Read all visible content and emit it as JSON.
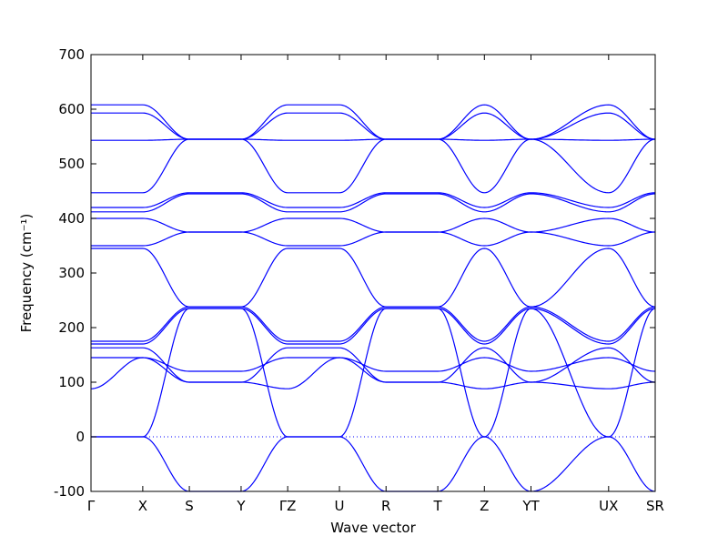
{
  "chart_data": {
    "type": "line",
    "title": "",
    "xlabel": "Wave vector",
    "ylabel": "Frequency (cm⁻¹)",
    "ylim": [
      -100,
      700
    ],
    "y_ticks": [
      -100,
      0,
      100,
      200,
      300,
      400,
      500,
      600,
      700
    ],
    "x_ticks": [
      {
        "label": "Γ",
        "pos": 0
      },
      {
        "label": "X",
        "pos": 0.5
      },
      {
        "label": "S",
        "pos": 0.95
      },
      {
        "label": "Y",
        "pos": 1.45
      },
      {
        "label": "ΓZ",
        "pos": 1.9
      },
      {
        "label": "U",
        "pos": 2.4
      },
      {
        "label": "R",
        "pos": 2.85
      },
      {
        "label": "T",
        "pos": 3.35
      },
      {
        "label": "Z",
        "pos": 3.8
      },
      {
        "label": "YT",
        "pos": 4.25
      },
      {
        "label": "UX",
        "pos": 5.0
      },
      {
        "label": "SR",
        "pos": 5.45
      }
    ],
    "xlim": [
      0,
      5.45
    ],
    "zero_line": {
      "y": 0,
      "style": "dotted"
    },
    "line_color": "#0000ff",
    "grid": false,
    "series": [
      {
        "x": [
          0,
          0.5,
          0.95,
          1.45,
          1.9,
          2.4,
          2.85,
          3.35,
          3.8,
          4.25,
          5.0,
          5.45
        ],
        "values": [
          0,
          0,
          -100,
          -100,
          0,
          0,
          -100,
          -100,
          0,
          -100,
          0,
          -100
        ]
      },
      {
        "x": [
          0,
          0.5,
          0.95,
          1.45,
          1.9,
          2.4,
          2.85,
          3.35,
          3.8,
          4.25,
          5.0,
          5.45
        ],
        "values": [
          0,
          0,
          235,
          235,
          0,
          0,
          235,
          235,
          0,
          235,
          0,
          235
        ]
      },
      {
        "x": [
          0,
          0.5,
          0.95,
          1.45,
          1.9,
          2.4,
          2.85,
          3.35,
          3.8,
          4.25,
          5.0,
          5.45
        ],
        "values": [
          88,
          145,
          100,
          100,
          88,
          145,
          100,
          100,
          88,
          100,
          88,
          100
        ]
      },
      {
        "x": [
          0,
          0.5,
          0.95,
          1.45,
          1.9,
          2.4,
          2.85,
          3.35,
          3.8,
          4.25,
          5.0,
          5.45
        ],
        "values": [
          145,
          145,
          120,
          120,
          145,
          145,
          120,
          120,
          145,
          120,
          145,
          120
        ]
      },
      {
        "x": [
          0,
          0.5,
          0.95,
          1.45,
          1.9,
          2.4,
          2.85,
          3.35,
          3.8,
          4.25,
          5.0,
          5.45
        ],
        "values": [
          163,
          163,
          100,
          100,
          163,
          163,
          100,
          100,
          163,
          100,
          163,
          100
        ]
      },
      {
        "x": [
          0,
          0.5,
          0.95,
          1.45,
          1.9,
          2.4,
          2.85,
          3.35,
          3.8,
          4.25,
          5.0,
          5.45
        ],
        "values": [
          170,
          170,
          235,
          235,
          170,
          170,
          235,
          235,
          170,
          235,
          170,
          235
        ]
      },
      {
        "x": [
          0,
          0.5,
          0.95,
          1.45,
          1.9,
          2.4,
          2.85,
          3.35,
          3.8,
          4.25,
          5.0,
          5.45
        ],
        "values": [
          175,
          175,
          238,
          238,
          175,
          175,
          238,
          238,
          175,
          238,
          175,
          238
        ]
      },
      {
        "x": [
          0,
          0.5,
          0.95,
          1.45,
          1.9,
          2.4,
          2.85,
          3.35,
          3.8,
          4.25,
          5.0,
          5.45
        ],
        "values": [
          345,
          345,
          238,
          238,
          345,
          345,
          238,
          238,
          345,
          238,
          345,
          238
        ]
      },
      {
        "x": [
          0,
          0.5,
          0.95,
          1.45,
          1.9,
          2.4,
          2.85,
          3.35,
          3.8,
          4.25,
          5.0,
          5.45
        ],
        "values": [
          350,
          350,
          375,
          375,
          350,
          350,
          375,
          375,
          350,
          375,
          350,
          375
        ]
      },
      {
        "x": [
          0,
          0.5,
          0.95,
          1.45,
          1.9,
          2.4,
          2.85,
          3.35,
          3.8,
          4.25,
          5.0,
          5.45
        ],
        "values": [
          400,
          400,
          375,
          375,
          400,
          400,
          375,
          375,
          400,
          375,
          400,
          375
        ]
      },
      {
        "x": [
          0,
          0.5,
          0.95,
          1.45,
          1.9,
          2.4,
          2.85,
          3.35,
          3.8,
          4.25,
          5.0,
          5.45
        ],
        "values": [
          412,
          412,
          445,
          445,
          412,
          412,
          445,
          445,
          412,
          445,
          412,
          445
        ]
      },
      {
        "x": [
          0,
          0.5,
          0.95,
          1.45,
          1.9,
          2.4,
          2.85,
          3.35,
          3.8,
          4.25,
          5.0,
          5.45
        ],
        "values": [
          420,
          420,
          447,
          447,
          420,
          420,
          447,
          447,
          420,
          447,
          420,
          447
        ]
      },
      {
        "x": [
          0,
          0.5,
          0.95,
          1.45,
          1.9,
          2.4,
          2.85,
          3.35,
          3.8,
          4.25,
          5.0,
          5.45
        ],
        "values": [
          447,
          447,
          545,
          545,
          447,
          447,
          545,
          545,
          447,
          545,
          447,
          545
        ]
      },
      {
        "x": [
          0,
          0.5,
          0.95,
          1.45,
          1.9,
          2.4,
          2.85,
          3.35,
          3.8,
          4.25,
          5.0,
          5.45
        ],
        "values": [
          543,
          543,
          545,
          545,
          543,
          543,
          545,
          545,
          543,
          545,
          543,
          545
        ]
      },
      {
        "x": [
          0,
          0.5,
          0.95,
          1.45,
          1.9,
          2.4,
          2.85,
          3.35,
          3.8,
          4.25,
          5.0,
          5.45
        ],
        "values": [
          593,
          593,
          545,
          545,
          593,
          593,
          545,
          545,
          593,
          545,
          593,
          545
        ]
      },
      {
        "x": [
          0,
          0.5,
          0.95,
          1.45,
          1.9,
          2.4,
          2.85,
          3.35,
          3.8,
          4.25,
          5.0,
          5.45
        ],
        "values": [
          608,
          608,
          545,
          545,
          608,
          608,
          545,
          545,
          608,
          545,
          608,
          545
        ]
      }
    ]
  }
}
